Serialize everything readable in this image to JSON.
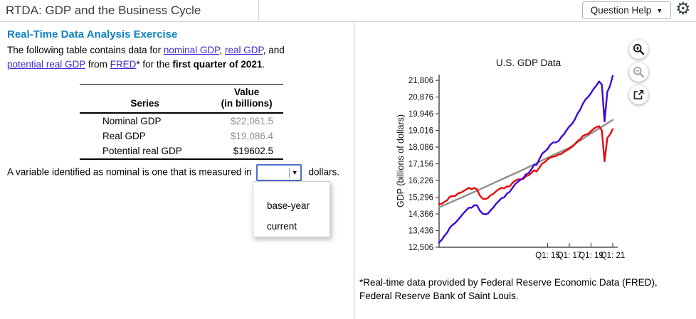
{
  "topbar": {
    "title": "RTDA: GDP and the Business Cycle",
    "help_label": "Question Help",
    "caret": "▼",
    "gear": "⚙"
  },
  "left": {
    "heading": "Real-Time Data Analysis Exercise",
    "intro": {
      "seg1": "The following table contains data for ",
      "link1": "nominal GDP",
      "seg2": ", ",
      "link2": "real GDP",
      "seg3": ", and",
      "link3": "potential real GDP",
      "seg4": " from ",
      "link4": "FRED",
      "seg5": "* for the ",
      "bold": "first quarter of 2021",
      "seg6": "."
    },
    "table": {
      "col1_header": "Series",
      "col2_header_line1": "Value",
      "col2_header_line2": "(in billions)",
      "rows": [
        {
          "series": "Nominal GDP",
          "value": "$22,061.5",
          "muted": true
        },
        {
          "series": "Real GDP",
          "value": "$19,086.4",
          "muted": true
        },
        {
          "series": "Potential real GDP",
          "value": "$19602.5",
          "muted": false
        }
      ]
    },
    "question": {
      "pre": "A variable identified as nominal is one that is measured in",
      "select_value": "",
      "select_caret": "▼",
      "post": " dollars.",
      "options": [
        "",
        "base-year",
        "current"
      ]
    }
  },
  "right": {
    "footnote": "*Real-time data provided by Federal Reserve Economic Data (FRED), Federal Reserve Bank of Saint Louis.",
    "icons": {
      "zoom_in": "zoom-in-icon",
      "zoom_out": "zoom-out-icon",
      "external": "external-link-icon",
      "gear": "settings-gear-icon",
      "caret": "caret-down-icon"
    }
  },
  "colors": {
    "heading_accent": "#1283c6",
    "link": "#3e2bd1",
    "select_border": "#4d6fd0",
    "muted_value": "#8f8f8f",
    "nominal_line": "#3b08d8",
    "real_line": "#e60808",
    "potential_line": "#8f8f8f"
  },
  "chart_data": {
    "type": "line",
    "title": "U.S. GDP Data",
    "xlabel": "",
    "ylabel": "GDP (billions of dollars)",
    "xlim": [
      2005,
      2021.46
    ],
    "ylim": [
      12506,
      22129
    ],
    "grid": false,
    "legend": "none",
    "yticks": {
      "values": [
        12506,
        13436,
        14366,
        15296,
        16226,
        17156,
        18086,
        19016,
        19946,
        20876,
        21806
      ],
      "labels": [
        "12,506",
        "13,436",
        "14,366",
        "15,296",
        "16,226",
        "17,156",
        "18,086",
        "19,016",
        "19,946",
        "20,876",
        "21,806"
      ]
    },
    "xticks": {
      "values": [
        2015,
        2017,
        2019,
        2021
      ],
      "labels": [
        "Q1: 15",
        "Q1: 17",
        "Q1: 19",
        "Q1: 21"
      ]
    },
    "x_start": 2005,
    "x_step": 0.25,
    "series": [
      {
        "name": "Potential real GDP",
        "color": "#8f8f8f",
        "x": [
          2005,
          2007,
          2009,
          2011,
          2013,
          2015,
          2017,
          2019,
          2021
        ],
        "values": [
          14730,
          15260,
          15800,
          16350,
          16900,
          17500,
          18050,
          18850,
          19602.5
        ]
      },
      {
        "name": "Real GDP",
        "color": "#e60808",
        "values": [
          14913,
          14928,
          15039,
          15130,
          15324,
          15352,
          15370,
          15510,
          15548,
          15634,
          15728,
          15819,
          15737,
          15814,
          15727,
          15393,
          15221,
          15190,
          15247,
          15407,
          15482,
          15627,
          15739,
          15822,
          15786,
          15896,
          15896,
          16080,
          16207,
          16282,
          16301,
          16312,
          16465,
          16511,
          16645,
          16800,
          16732,
          16961,
          17170,
          17260,
          17406,
          17500,
          17556,
          17584,
          17674,
          17701,
          17819,
          17904,
          18000,
          18100,
          18246,
          18414,
          18529,
          18712,
          18783,
          18833,
          18976,
          19112,
          19202,
          19254,
          19011,
          17303,
          18597,
          18794,
          19086.4
        ]
      },
      {
        "name": "Nominal GDP",
        "color": "#3b08d8",
        "values": [
          12767,
          12922,
          13142,
          13324,
          13600,
          13753,
          13870,
          14039,
          14215,
          14402,
          14564,
          14715,
          14707,
          14845,
          14843,
          14550,
          14384,
          14340,
          14384,
          14567,
          14721,
          14926,
          15079,
          15240,
          15285,
          15496,
          15591,
          15797,
          16019,
          16152,
          16257,
          16358,
          16569,
          16637,
          16848,
          17083,
          17104,
          17432,
          17721,
          17850,
          17984,
          18219,
          18344,
          18350,
          18424,
          18637,
          18806,
          19032,
          19237,
          19379,
          19617,
          19938,
          20163,
          20510,
          20749,
          20897,
          21098,
          21340,
          21526,
          21747,
          21561,
          19520,
          21170,
          21494,
          22061.5
        ]
      }
    ]
  }
}
